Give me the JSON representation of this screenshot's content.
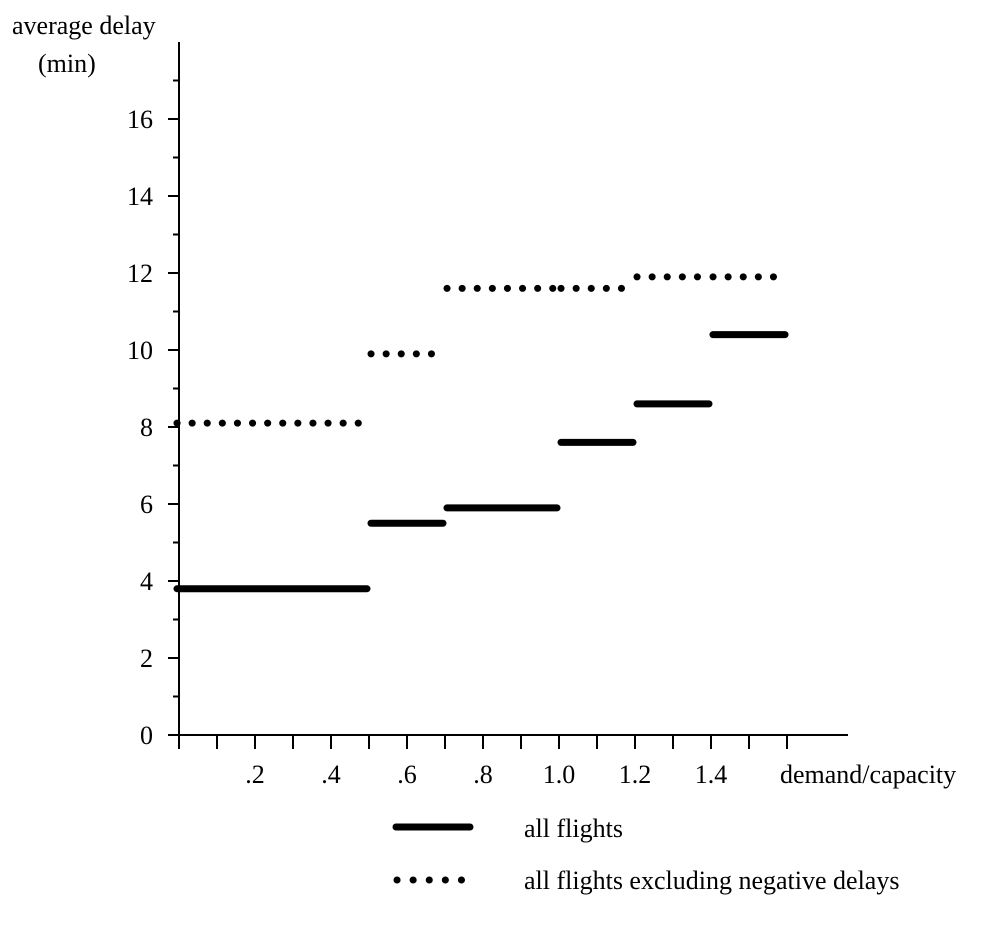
{
  "chart_data": {
    "type": "line",
    "ylabel_line1": "average delay",
    "ylabel_line2": "(min)",
    "xlabel": "demand/capacity",
    "ylim": [
      0,
      17.5
    ],
    "xlim": [
      0,
      1.75
    ],
    "y_ticks": [
      0,
      2,
      4,
      6,
      8,
      10,
      12,
      14,
      16
    ],
    "y_tick_labels": [
      "0",
      "2",
      "4",
      "6",
      "8",
      "10",
      "12",
      "14",
      "16"
    ],
    "x_ticks": [
      0.2,
      0.4,
      0.6,
      0.8,
      1.0,
      1.2,
      1.4
    ],
    "x_tick_labels": [
      ".2",
      ".4",
      ".6",
      ".8",
      "1.0",
      "1.2",
      "1.4"
    ],
    "series": [
      {
        "name": "all flights",
        "style": "solid",
        "steps": [
          {
            "x0": 0.0,
            "x1": 0.5,
            "y": 3.8
          },
          {
            "x0": 0.5,
            "x1": 0.7,
            "y": 5.5
          },
          {
            "x0": 0.7,
            "x1": 1.0,
            "y": 5.9
          },
          {
            "x0": 1.0,
            "x1": 1.2,
            "y": 7.6
          },
          {
            "x0": 1.2,
            "x1": 1.4,
            "y": 8.6
          },
          {
            "x0": 1.4,
            "x1": 1.6,
            "y": 10.4
          }
        ]
      },
      {
        "name": "all flights excluding negative delays",
        "style": "dotted",
        "steps": [
          {
            "x0": 0.0,
            "x1": 0.5,
            "y": 8.1
          },
          {
            "x0": 0.5,
            "x1": 0.7,
            "y": 9.9
          },
          {
            "x0": 0.7,
            "x1": 1.0,
            "y": 11.6
          },
          {
            "x0": 1.0,
            "x1": 1.2,
            "y": 11.6
          },
          {
            "x0": 1.2,
            "x1": 1.4,
            "y": 11.9
          },
          {
            "x0": 1.4,
            "x1": 1.6,
            "y": 11.9
          }
        ]
      }
    ],
    "legend_position": "bottom-center",
    "grid": false
  }
}
